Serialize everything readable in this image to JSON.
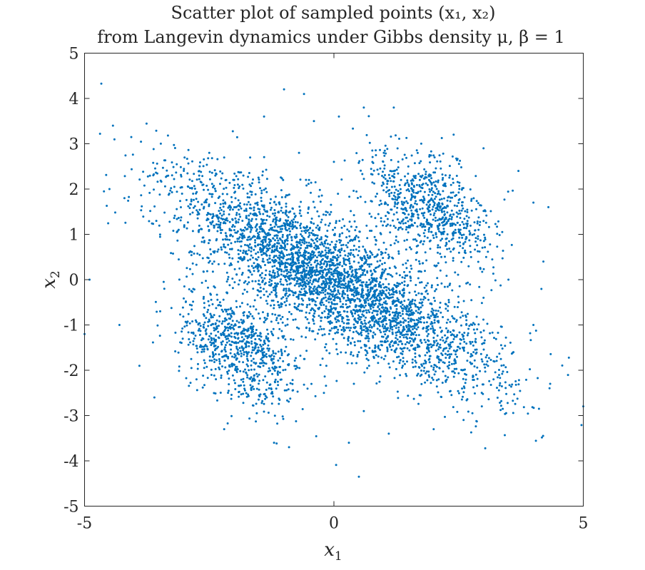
{
  "chart_data": {
    "type": "scatter",
    "title_lines": [
      "Scatter plot of sampled points (x₁, x₂)",
      "from Langevin dynamics under Gibbs density μ, β = 1"
    ],
    "xlabel": {
      "base": "x",
      "sub": "1"
    },
    "ylabel": {
      "base": "x",
      "sub": "2"
    },
    "xlim": [
      -5,
      5
    ],
    "ylim": [
      -5,
      5
    ],
    "x_ticks": [
      {
        "value": -5,
        "label": "-5"
      },
      {
        "value": 0,
        "label": "0"
      },
      {
        "value": 5,
        "label": "5"
      }
    ],
    "y_ticks": [
      {
        "value": 5,
        "label": "5"
      },
      {
        "value": 4,
        "label": "4"
      },
      {
        "value": 3,
        "label": "3"
      },
      {
        "value": 2,
        "label": "2"
      },
      {
        "value": 1,
        "label": "1"
      },
      {
        "value": 0,
        "label": "0"
      },
      {
        "value": -1,
        "label": "-1"
      },
      {
        "value": -2,
        "label": "-2"
      },
      {
        "value": -3,
        "label": "-3"
      },
      {
        "value": -4,
        "label": "-4"
      },
      {
        "value": -5,
        "label": "-5"
      }
    ],
    "grid": false,
    "marker_color": "#0072BD",
    "points": [
      [
        -0.6,
        0.3
      ],
      [
        0.2,
        -0.4
      ],
      [
        -1.1,
        0.8
      ],
      [
        1.0,
        -0.9
      ],
      [
        -0.3,
        1.4
      ],
      [
        0.5,
        -1.6
      ],
      [
        -1.8,
        0.5
      ],
      [
        1.7,
        -0.3
      ],
      [
        -2.4,
        0.4
      ],
      [
        2.5,
        -0.5
      ],
      [
        -0.5,
        2.2
      ],
      [
        0.4,
        -2.3
      ],
      [
        -1.4,
        1.6
      ],
      [
        1.3,
        -1.7
      ],
      [
        -2.9,
        0.6
      ],
      [
        3.0,
        -0.4
      ],
      [
        -0.7,
        2.8
      ],
      [
        0.6,
        -2.9
      ],
      [
        1.8,
        1.7
      ],
      [
        2.2,
        1.2
      ],
      [
        1.5,
        2.1
      ],
      [
        2.6,
        0.8
      ],
      [
        1.9,
        2.3
      ],
      [
        2.9,
        1.1
      ],
      [
        -1.8,
        -1.6
      ],
      [
        -2.2,
        -1.2
      ],
      [
        -1.5,
        -2.1
      ],
      [
        -2.6,
        -0.8
      ],
      [
        -1.3,
        -2.4
      ],
      [
        -2.8,
        -1.3
      ],
      [
        -0.4,
        3.5
      ],
      [
        0.1,
        3.6
      ],
      [
        -1.0,
        4.2
      ],
      [
        -0.6,
        4.1
      ],
      [
        0.6,
        3.8
      ],
      [
        1.2,
        3.8
      ],
      [
        -1.4,
        3.6
      ],
      [
        -2.5,
        2.8
      ],
      [
        -3.3,
        1.9
      ],
      [
        -4.2,
        1.8
      ],
      [
        -4.5,
        2.0
      ],
      [
        -4.9,
        0.0
      ],
      [
        -5.0,
        -1.2
      ],
      [
        -4.3,
        -1.0
      ],
      [
        -3.9,
        -1.9
      ],
      [
        -3.6,
        -2.6
      ],
      [
        -2.2,
        -3.3
      ],
      [
        -1.2,
        -3.6
      ],
      [
        -0.9,
        -3.7
      ],
      [
        0.3,
        -3.6
      ],
      [
        0.5,
        -4.35
      ],
      [
        1.1,
        -3.4
      ],
      [
        2.0,
        -3.3
      ],
      [
        2.6,
        -3.1
      ],
      [
        3.2,
        -2.2
      ],
      [
        3.6,
        -1.6
      ],
      [
        4.0,
        -1.0
      ],
      [
        4.2,
        0.4
      ],
      [
        4.3,
        1.6
      ],
      [
        4.0,
        1.7
      ],
      [
        3.7,
        2.4
      ],
      [
        3.0,
        2.9
      ],
      [
        2.4,
        3.2
      ],
      [
        3.5,
        0.0
      ],
      [
        -3.4,
        -0.2
      ],
      [
        -3.0,
        1.2
      ],
      [
        2.8,
        -1.6
      ],
      [
        -0.2,
        -2.5
      ],
      [
        0.0,
        2.6
      ],
      [
        -2.0,
        2.2
      ],
      [
        2.1,
        -2.2
      ],
      [
        1.0,
        2.8
      ]
    ]
  }
}
